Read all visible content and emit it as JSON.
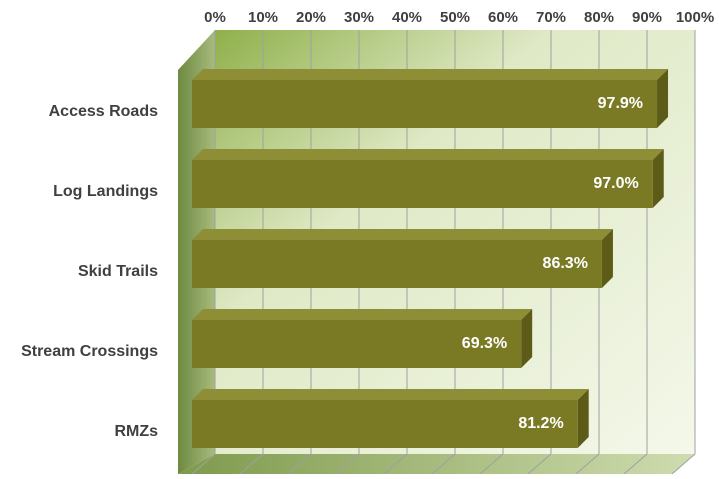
{
  "chart_data": {
    "type": "bar",
    "orientation": "horizontal",
    "categories": [
      "Access Roads",
      "Log Landings",
      "Skid Trails",
      "Stream Crossings",
      "RMZs"
    ],
    "values": [
      97.9,
      97.0,
      86.3,
      69.3,
      81.2
    ],
    "value_labels": [
      "97.9%",
      "97.0%",
      "86.3%",
      "69.3%",
      "81.2%"
    ],
    "color": "#7a7a24",
    "xlim": [
      0,
      100
    ],
    "xticks": [
      {
        "value": 0,
        "label": "0%"
      },
      {
        "value": 10,
        "label": "10%"
      },
      {
        "value": 20,
        "label": "20%"
      },
      {
        "value": 30,
        "label": "30%"
      },
      {
        "value": 40,
        "label": "40%"
      },
      {
        "value": 50,
        "label": "50%"
      },
      {
        "value": 60,
        "label": "60%"
      },
      {
        "value": 70,
        "label": "70%"
      },
      {
        "value": 80,
        "label": "80%"
      },
      {
        "value": 90,
        "label": "90%"
      },
      {
        "value": 100,
        "label": "100%"
      }
    ],
    "grid": true
  }
}
